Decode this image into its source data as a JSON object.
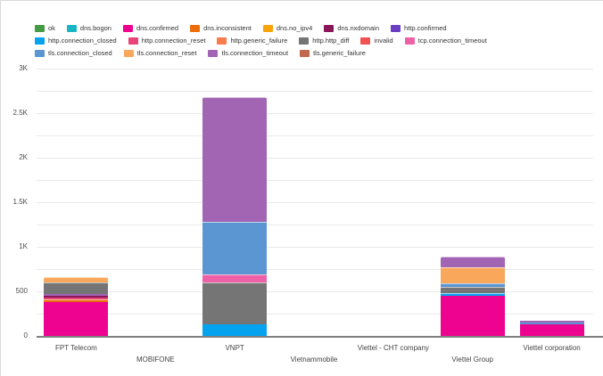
{
  "page": {
    "background": "#ffffff",
    "border_color": "#d9d9d9"
  },
  "colors": {
    "ok": "#459a45",
    "dns.bogon": "#19b5c5",
    "dns.confirmed": "#ee0290",
    "dns.inconsistent": "#eb6d0b",
    "dns.no_ipv4": "#f8a408",
    "dns.nxdomain": "#891659",
    "http.confirmed": "#6a3fc3",
    "http.connection_closed": "#05a2f0",
    "http.connection_reset": "#e94379",
    "http.generic_failure": "#f97c4f",
    "http.http_diff": "#757575",
    "invalid": "#ef5251",
    "tcp.connection_timeout": "#ee61a6",
    "tls.connection_closed": "#5b96d2",
    "tls.connection_reset": "#f9a75a",
    "tls.connection_timeout": "#a165b4",
    "tls.generic_failure": "#c0694f"
  },
  "legend": {
    "rows": [
      [
        "ok",
        "dns.bogon",
        "dns.confirmed",
        "dns.inconsistent",
        "dns.no_ipv4",
        "dns.nxdomain",
        "http.confirmed"
      ],
      [
        "http.connection_closed",
        "http.connection_reset",
        "http.generic_failure",
        "http.http_diff",
        "invalid",
        "tcp.connection_timeout"
      ],
      [
        "tls.connection_closed",
        "tls.connection_reset",
        "tls.connection_timeout",
        "tls.generic_failure"
      ]
    ]
  },
  "y_axis": {
    "tick_labels": [
      {
        "label": "3K",
        "value": 3000
      },
      {
        "label": "2.5K",
        "value": 2500
      },
      {
        "label": "2K",
        "value": 2000
      },
      {
        "label": "1.5K",
        "value": 1500
      },
      {
        "label": "1K",
        "value": 1000
      },
      {
        "label": "500",
        "value": 500
      },
      {
        "label": "0",
        "value": 0
      }
    ],
    "gridline_step": 250,
    "max": 3000
  },
  "chart_data": {
    "type": "bar",
    "stacked": true,
    "title": "",
    "xlabel": "",
    "ylabel": "",
    "ylim": [
      0,
      3000
    ],
    "grid": true,
    "legend_position": "top",
    "categories": [
      "FPT Telecom",
      "MOBIFONE",
      "VNPT",
      "Vietnammobile",
      "Viettel - CHT company",
      "Viettel Group",
      "Viettel corporation"
    ],
    "bars": [
      {
        "category": "FPT Telecom",
        "segments": [
          {
            "key": "dns.confirmed",
            "value": 390
          },
          {
            "key": "dns.inconsistent",
            "value": 30
          },
          {
            "key": "http.connection_reset",
            "value": 20
          },
          {
            "key": "dns.nxdomain",
            "value": 15
          },
          {
            "key": "tls.connection_timeout",
            "value": 15
          },
          {
            "key": "http.http_diff",
            "value": 130
          },
          {
            "key": "tls.connection_reset",
            "value": 60
          }
        ]
      },
      {
        "category": "MOBIFONE",
        "segments": [
          {
            "key": "dns.confirmed",
            "value": 8
          }
        ]
      },
      {
        "category": "VNPT",
        "segments": [
          {
            "key": "http.connection_closed",
            "value": 140
          },
          {
            "key": "http.http_diff",
            "value": 470
          },
          {
            "key": "tcp.connection_timeout",
            "value": 90
          },
          {
            "key": "tls.connection_closed",
            "value": 590
          },
          {
            "key": "tls.connection_timeout",
            "value": 1400
          }
        ]
      },
      {
        "category": "Vietnammobile",
        "segments": [
          {
            "key": "http.connection_closed",
            "value": 8
          }
        ]
      },
      {
        "category": "Viettel - CHT company",
        "segments": [
          {
            "key": "http.connection_closed",
            "value": 8
          }
        ]
      },
      {
        "category": "Viettel Group",
        "segments": [
          {
            "key": "dns.confirmed",
            "value": 460
          },
          {
            "key": "http.connection_closed",
            "value": 30
          },
          {
            "key": "http.http_diff",
            "value": 65
          },
          {
            "key": "tls.connection_closed",
            "value": 40
          },
          {
            "key": "tls.connection_reset",
            "value": 180
          },
          {
            "key": "tls.connection_timeout",
            "value": 115
          }
        ]
      },
      {
        "category": "Viettel corporation",
        "segments": [
          {
            "key": "dns.confirmed",
            "value": 140
          },
          {
            "key": "tls.connection_closed",
            "value": 15
          },
          {
            "key": "tls.connection_timeout",
            "value": 15
          }
        ]
      }
    ]
  }
}
